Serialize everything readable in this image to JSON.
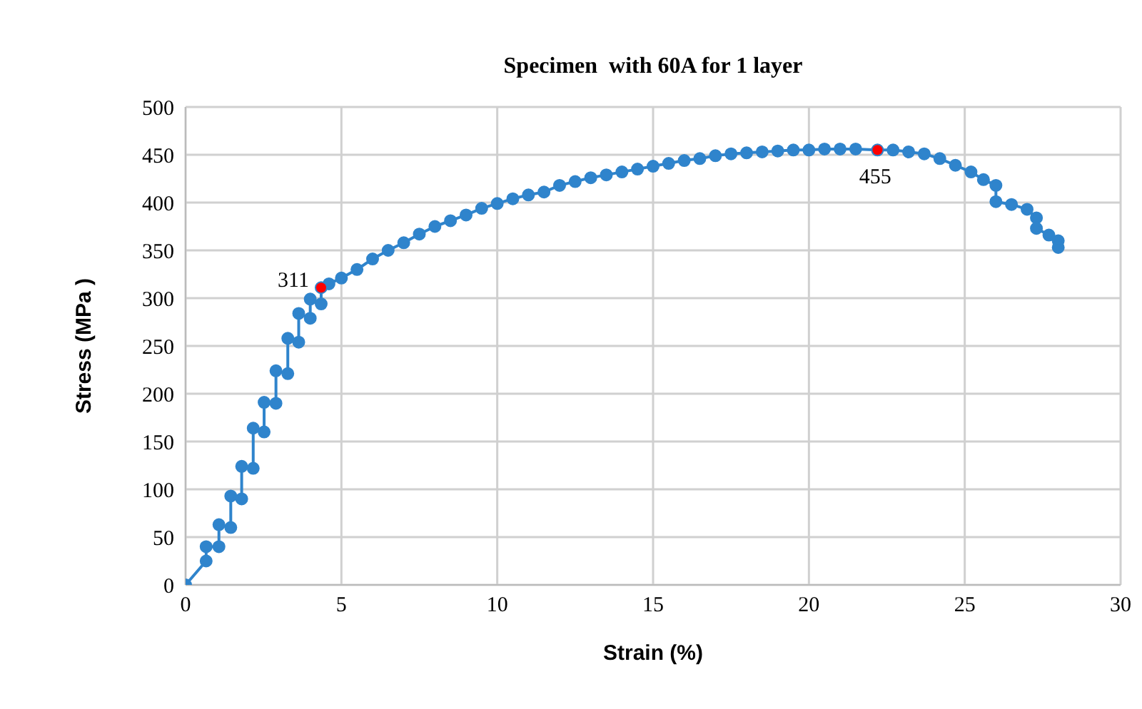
{
  "chart_data": {
    "type": "line",
    "title": "Specimen  with 60A for 1 layer",
    "xlabel": "Strain (%)",
    "ylabel": "Stress (MPa )",
    "xlim": [
      0,
      30
    ],
    "xticks": [
      0,
      5,
      10,
      15,
      20,
      25,
      30
    ],
    "ylim": [
      0,
      500
    ],
    "yticks": [
      0,
      50,
      100,
      150,
      200,
      250,
      300,
      350,
      400,
      450,
      500
    ],
    "grid": true,
    "marker": "circle",
    "line_style": "solid",
    "series": [
      {
        "color": "#2f84cc",
        "x": [
          0,
          0.66,
          0.66,
          1.07,
          1.07,
          1.45,
          1.45,
          1.8,
          1.8,
          2.17,
          2.17,
          2.52,
          2.52,
          2.9,
          2.9,
          3.28,
          3.28,
          3.63,
          3.63,
          4.0,
          4.0,
          4.35,
          4.35,
          4.6,
          5.0,
          5.5,
          6.0,
          6.5,
          7.0,
          7.5,
          8.0,
          8.5,
          9.0,
          9.5,
          10.0,
          10.5,
          11.0,
          11.5,
          12.0,
          12.5,
          13.0,
          13.5,
          14.0,
          14.5,
          15.0,
          15.5,
          16.0,
          16.5,
          17.0,
          17.5,
          18.0,
          18.5,
          19.0,
          19.5,
          20.0,
          20.5,
          21.0,
          21.5,
          22.2,
          22.7,
          23.2,
          23.7,
          24.2,
          24.7,
          25.2,
          25.6,
          26.0,
          26.0,
          26.5,
          27.0,
          27.3,
          27.3,
          27.7,
          28.0,
          28.0
        ],
        "values": [
          0,
          25,
          40,
          40,
          63,
          60,
          93,
          90,
          124,
          122,
          164,
          160,
          191,
          190,
          224,
          221,
          258,
          254,
          284,
          279,
          299,
          294,
          311,
          315,
          321,
          330,
          341,
          350,
          358,
          367,
          375,
          381,
          387,
          394,
          399,
          404,
          408,
          411,
          418,
          422,
          426,
          429,
          432,
          435,
          438,
          441,
          444,
          446,
          449,
          451,
          452,
          453,
          454,
          455,
          455,
          456,
          456,
          456,
          455,
          455,
          453,
          451,
          446,
          439,
          432,
          424,
          418,
          401,
          398,
          393,
          384,
          373,
          366,
          360,
          353
        ]
      },
      {
        "type": "scatter",
        "color": "#ff0000",
        "x": [
          4.35,
          22.2
        ],
        "values": [
          311,
          455
        ],
        "value_labels": [
          "311",
          "455"
        ]
      }
    ]
  }
}
